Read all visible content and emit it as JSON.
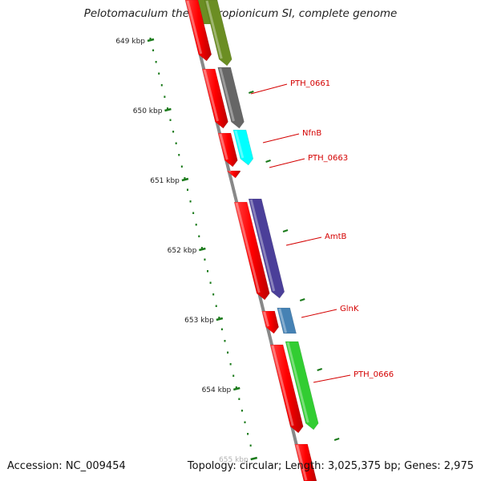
{
  "title": "Pelotomaculum thermopropionicum SI, complete genome",
  "footer": {
    "accession": "Accession: NC_009454",
    "summary": "Topology: circular; Length: 3,025,375 bp; Genes: 2,975"
  },
  "scale_labels": [
    "649 kbp",
    "650 kbp",
    "651 kbp",
    "652 kbp",
    "653 kbp",
    "654 kbp",
    "655 kbp"
  ],
  "gene_labels": [
    "PTH_0661",
    "NfnB",
    "PTH_0663",
    "AmtB",
    "GlnK",
    "PTH_0666"
  ],
  "colors": {
    "backbone": "#888888",
    "cds": "#ee1111",
    "olive": "#6b8e23",
    "gray": "#666666",
    "cyan": "#00ffff",
    "purple": "#4b3f99",
    "steelblue": "#4682b4",
    "green": "#32cd32",
    "tick": "#1a7a1a",
    "label": "#d40000"
  }
}
